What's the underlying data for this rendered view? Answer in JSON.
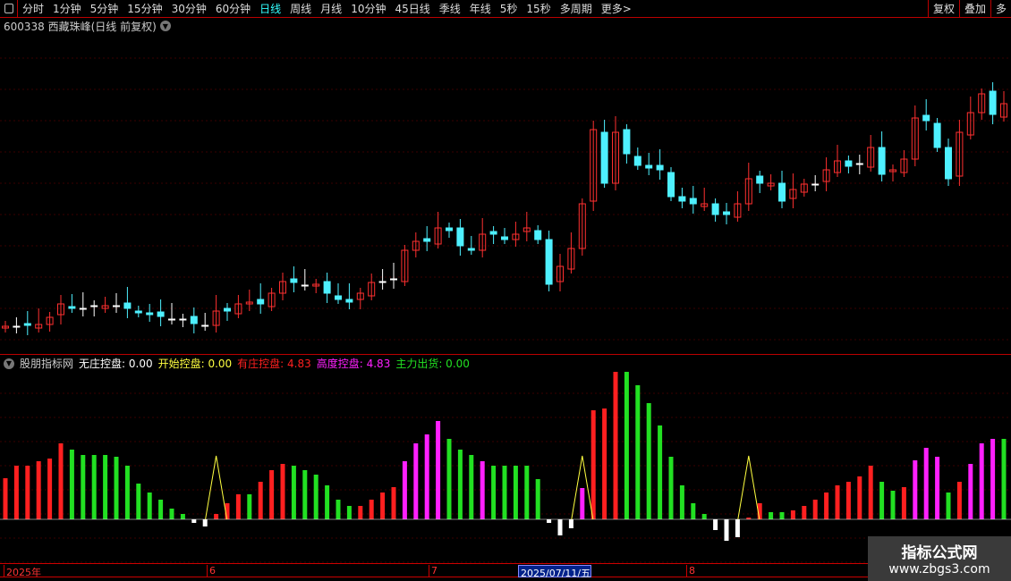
{
  "toolbar": {
    "periods": [
      "分时",
      "1分钟",
      "5分钟",
      "15分钟",
      "30分钟",
      "60分钟",
      "日线",
      "周线",
      "月线",
      "10分钟",
      "45日线",
      "季线",
      "年线",
      "5秒",
      "15秒",
      "多周期",
      "更多>"
    ],
    "active": "日线",
    "right": [
      "复权",
      "叠加",
      "多"
    ]
  },
  "title": "600338 西藏珠峰(日线 前复权)",
  "colors": {
    "up": "#ff3030",
    "down": "#4ef0ff",
    "red": "#ff2020",
    "green": "#22e022",
    "magenta": "#ff20ff",
    "white": "#ffffff",
    "yellow": "#ffff40"
  },
  "indicator": {
    "name": "股朋指标网",
    "items": [
      {
        "label": "无庄控盘: 0.00",
        "color": "#ffffff"
      },
      {
        "label": "开始控盘: 0.00",
        "color": "#ffff40"
      },
      {
        "label": "有庄控盘: 4.83",
        "color": "#ff2020"
      },
      {
        "label": "高度控盘: 4.83",
        "color": "#ff20ff"
      },
      {
        "label": "主力出货: 0.00",
        "color": "#22e022"
      }
    ]
  },
  "axis": {
    "labels": [
      "2025年",
      "6",
      "7",
      "2025/07/11/五",
      "8"
    ]
  },
  "watermark": {
    "line1": "指标公式网",
    "line2": "www.zbgs3.com"
  },
  "chart_data": {
    "type": "candlestick+bar",
    "closes": [
      5.5,
      5.5,
      5.6,
      5.7,
      6.5,
      8.0,
      7.5,
      7.4,
      7.8,
      7.8,
      7.8,
      7.5,
      7.0,
      6.8,
      6.6,
      6.2,
      6.3,
      5.8,
      5.6,
      7.2,
      7.2,
      8.0,
      8.2,
      8.0,
      9.2,
      10.5,
      10.4,
      10.0,
      10.2,
      9.2,
      8.5,
      8.2,
      9.2,
      10.4,
      10.5,
      10.8,
      14.0,
      15.0,
      15.0,
      16.5,
      16.2,
      14.5,
      14.0,
      15.8,
      15.8,
      15.2,
      15.8,
      16.5,
      15.2,
      10.2,
      12.2,
      14.2,
      19.2,
      27.5,
      21.5,
      27.2,
      24.8,
      23.5,
      23.2,
      23.0,
      20.0,
      19.5,
      19.2,
      19.2,
      18.0,
      18.0,
      19.2,
      22.0,
      21.5,
      21.5,
      19.5,
      20.8,
      21.4,
      21.4,
      23.0,
      24.0,
      23.4,
      23.6,
      25.5,
      22.5,
      23.0,
      24.2,
      28.8,
      28.5,
      25.5,
      22.0,
      27.2,
      29.4,
      31.5,
      29.2,
      30.4
    ],
    "indicator_bars": [
      [
        46,
        "red"
      ],
      [
        60,
        "red"
      ],
      [
        60,
        "red"
      ],
      [
        65,
        "red"
      ],
      [
        68,
        "red"
      ],
      [
        85,
        "red"
      ],
      [
        78,
        "green"
      ],
      [
        72,
        "green"
      ],
      [
        72,
        "green"
      ],
      [
        72,
        "green"
      ],
      [
        70,
        "green"
      ],
      [
        60,
        "green"
      ],
      [
        40,
        "green"
      ],
      [
        30,
        "green"
      ],
      [
        22,
        "green"
      ],
      [
        12,
        "green"
      ],
      [
        6,
        "green"
      ],
      [
        -4,
        "white"
      ],
      [
        -8,
        "white"
      ],
      [
        6,
        "red"
      ],
      [
        18,
        "red"
      ],
      [
        28,
        "red"
      ],
      [
        28,
        "green"
      ],
      [
        42,
        "red"
      ],
      [
        55,
        "red"
      ],
      [
        62,
        "red"
      ],
      [
        60,
        "green"
      ],
      [
        55,
        "green"
      ],
      [
        50,
        "green"
      ],
      [
        38,
        "green"
      ],
      [
        22,
        "green"
      ],
      [
        15,
        "green"
      ],
      [
        15,
        "red"
      ],
      [
        22,
        "red"
      ],
      [
        30,
        "red"
      ],
      [
        36,
        "red"
      ],
      [
        65,
        "magenta"
      ],
      [
        85,
        "magenta"
      ],
      [
        95,
        "magenta"
      ],
      [
        110,
        "magenta"
      ],
      [
        90,
        "green"
      ],
      [
        78,
        "green"
      ],
      [
        72,
        "green"
      ],
      [
        65,
        "magenta"
      ],
      [
        60,
        "green"
      ],
      [
        60,
        "green"
      ],
      [
        60,
        "green"
      ],
      [
        60,
        "green"
      ],
      [
        45,
        "green"
      ],
      [
        -4,
        "white"
      ],
      [
        -18,
        "white"
      ],
      [
        -10,
        "white"
      ],
      [
        35,
        "magenta"
      ],
      [
        122,
        "red"
      ],
      [
        124,
        "red"
      ],
      [
        165,
        "red"
      ],
      [
        165,
        "green"
      ],
      [
        150,
        "green"
      ],
      [
        130,
        "green"
      ],
      [
        105,
        "green"
      ],
      [
        70,
        "green"
      ],
      [
        38,
        "green"
      ],
      [
        18,
        "green"
      ],
      [
        6,
        "green"
      ],
      [
        -12,
        "white"
      ],
      [
        -24,
        "white"
      ],
      [
        -20,
        "white"
      ],
      [
        2,
        "red"
      ],
      [
        18,
        "red"
      ],
      [
        8,
        "green"
      ],
      [
        8,
        "green"
      ],
      [
        10,
        "red"
      ],
      [
        15,
        "red"
      ],
      [
        22,
        "red"
      ],
      [
        30,
        "red"
      ],
      [
        38,
        "red"
      ],
      [
        42,
        "red"
      ],
      [
        48,
        "red"
      ],
      [
        60,
        "red"
      ],
      [
        42,
        "green"
      ],
      [
        32,
        "green"
      ],
      [
        36,
        "red"
      ],
      [
        66,
        "magenta"
      ],
      [
        80,
        "magenta"
      ],
      [
        70,
        "magenta"
      ],
      [
        30,
        "green"
      ],
      [
        42,
        "red"
      ],
      [
        62,
        "magenta"
      ],
      [
        85,
        "magenta"
      ],
      [
        90,
        "magenta"
      ],
      [
        90,
        "green"
      ]
    ],
    "yellow_peaks": [
      19,
      52,
      67
    ]
  }
}
